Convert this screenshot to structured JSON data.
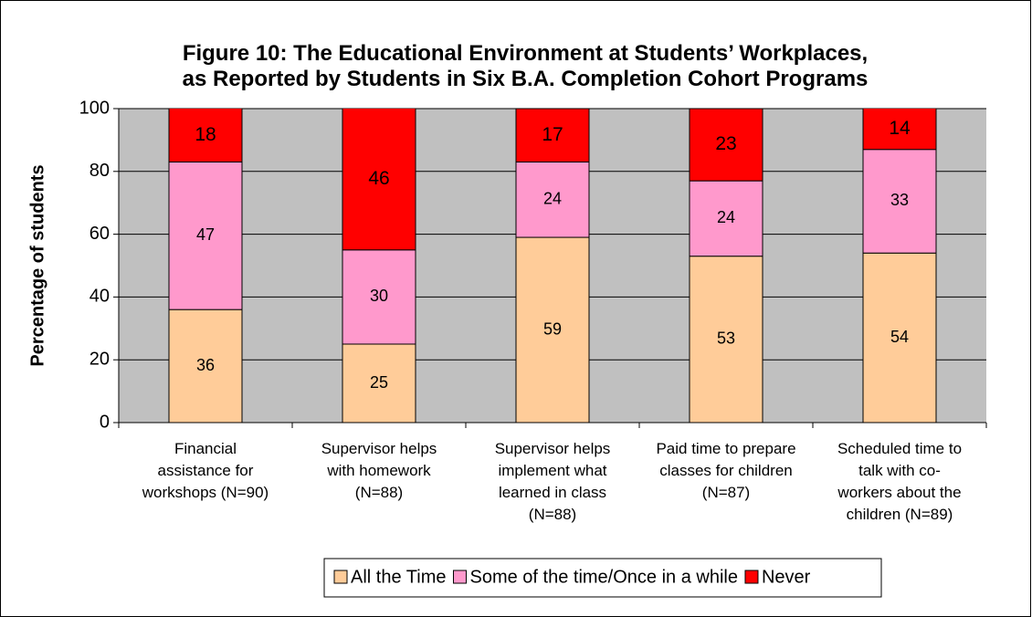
{
  "chart_data": {
    "type": "stacked_bar",
    "title": "Figure 10: The Educational Environment at Students’ Workplaces,\nas Reported by Students in Six B.A. Completion Cohort Programs",
    "y_label": "Percentage of students",
    "categories": [
      "Financial\nassistance for\nworkshops (N=90)",
      "Supervisor helps\nwith homework\n(N=88)",
      "Supervisor helps\nimplement what\nlearned in class\n(N=88)",
      "Paid time to prepare\nclasses for children\n(N=87)",
      "Scheduled time to\ntalk with co-\nworkers about the\nchildren (N=89)"
    ],
    "series": [
      {
        "name": "All the Time",
        "color": "#ffcc99",
        "values": [
          36,
          25,
          59,
          53,
          54
        ]
      },
      {
        "name": "Some of the time/Once in a while",
        "color": "#ff99cc",
        "values": [
          47,
          30,
          24,
          24,
          33
        ]
      },
      {
        "name": "Never",
        "color": "#ff0000",
        "values": [
          18,
          46,
          17,
          23,
          14
        ]
      }
    ],
    "ylim": [
      0,
      100
    ],
    "yticks": [
      0,
      20,
      40,
      60,
      80,
      100
    ],
    "grid": true,
    "legend": "bottom"
  }
}
